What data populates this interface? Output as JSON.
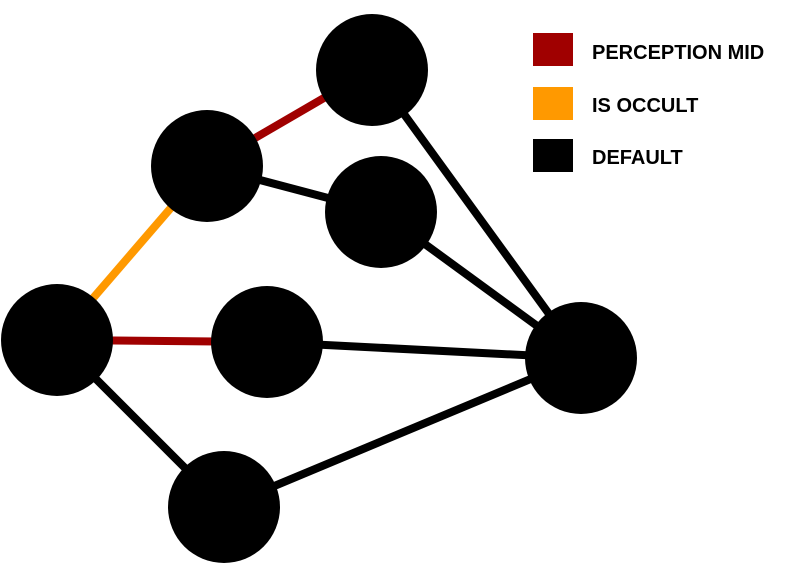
{
  "colors": {
    "perception_mid": "#a00000",
    "is_occult": "#ff9900",
    "default": "#000000"
  },
  "legend": [
    {
      "key": "perception_mid",
      "label": "PERCEPTION MID"
    },
    {
      "key": "is_occult",
      "label": "IS OCCULT"
    },
    {
      "key": "default",
      "label": "DEFAULT"
    }
  ],
  "nodes": [
    "n_left",
    "n_upper_mid",
    "n_top",
    "n_mid_right",
    "n_center",
    "n_right",
    "n_bottom"
  ],
  "edges": [
    {
      "from": "n_upper_mid",
      "to": "n_top",
      "type": "perception_mid"
    },
    {
      "from": "n_left",
      "to": "n_upper_mid",
      "type": "is_occult"
    },
    {
      "from": "n_left",
      "to": "n_center",
      "type": "perception_mid"
    },
    {
      "from": "n_upper_mid",
      "to": "n_mid_right",
      "type": "default"
    },
    {
      "from": "n_top",
      "to": "n_right",
      "type": "default"
    },
    {
      "from": "n_mid_right",
      "to": "n_right",
      "type": "default"
    },
    {
      "from": "n_center",
      "to": "n_right",
      "type": "default"
    },
    {
      "from": "n_left",
      "to": "n_bottom",
      "type": "default"
    },
    {
      "from": "n_bottom",
      "to": "n_right",
      "type": "default"
    }
  ]
}
